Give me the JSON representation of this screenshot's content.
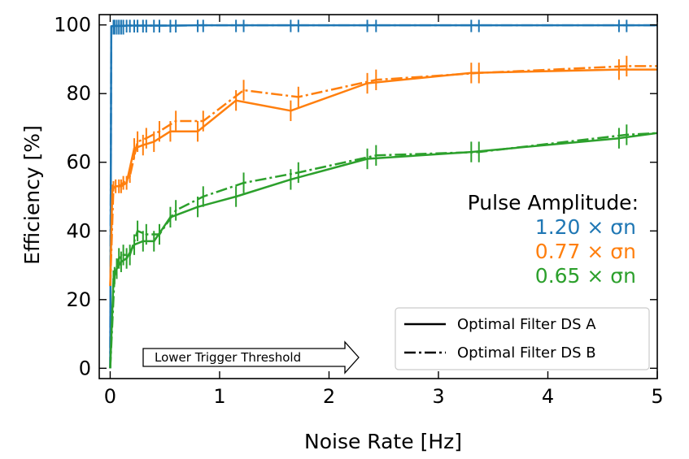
{
  "chart_data": {
    "type": "line",
    "xlabel": "Noise Rate [Hz]",
    "ylabel": "Efficiency [%]",
    "xlim": [
      -0.1,
      5.0
    ],
    "ylim": [
      -3,
      103
    ],
    "xticks": [
      "0",
      "1",
      "2",
      "3",
      "4",
      "5"
    ],
    "yticks": [
      "0",
      "20",
      "40",
      "60",
      "80",
      "100"
    ],
    "xtick_values": [
      0,
      1,
      2,
      3,
      4,
      5
    ],
    "ytick_values": [
      0,
      20,
      40,
      60,
      80,
      100
    ],
    "grid": false,
    "legend_position": "lower-right",
    "legend": [
      {
        "label": "Optimal Filter DS A",
        "style": "solid"
      },
      {
        "label": "Optimal Filter DS B",
        "style": "dashdot"
      }
    ],
    "annotation": {
      "title": "Pulse Amplitude:",
      "entries": [
        {
          "text": "1.20 × σn",
          "color": "#1f77b4"
        },
        {
          "text": "0.77 × σn",
          "color": "#ff7f0e"
        },
        {
          "text": "0.65 × σn",
          "color": "#2ca02c"
        }
      ]
    },
    "arrow_label": "Lower Trigger Threshold",
    "series": [
      {
        "amplitude": "1.20 × σn",
        "dataset": "Optimal Filter DS A",
        "color": "#1f77b4",
        "style": "solid",
        "x": [
          0.0,
          0.01,
          0.03,
          0.06,
          0.1,
          0.15,
          0.22,
          0.3,
          0.4,
          0.55,
          0.8,
          1.15,
          1.65,
          2.35,
          3.3,
          4.65,
          5.0
        ],
        "y": [
          0,
          99.6,
          99.7,
          99.7,
          99.7,
          99.8,
          99.8,
          99.8,
          99.8,
          99.8,
          99.9,
          99.9,
          99.9,
          99.9,
          99.9,
          99.9,
          99.9
        ],
        "yerr": [
          0,
          0,
          2.5,
          2.5,
          2.5,
          2.0,
          2.0,
          2.0,
          2.0,
          2.0,
          2.0,
          2.0,
          2.0,
          2.0,
          2.0,
          2.0,
          0
        ]
      },
      {
        "amplitude": "1.20 × σn",
        "dataset": "Optimal Filter DS B",
        "color": "#1f77b4",
        "style": "dashdot",
        "x": [
          0.0,
          0.01,
          0.04,
          0.08,
          0.12,
          0.18,
          0.25,
          0.33,
          0.45,
          0.6,
          0.85,
          1.22,
          1.72,
          2.43,
          3.37,
          4.72,
          5.0
        ],
        "y": [
          0,
          99.6,
          99.7,
          99.7,
          99.7,
          99.8,
          99.8,
          99.8,
          99.8,
          99.8,
          99.9,
          99.9,
          99.9,
          99.9,
          99.9,
          99.9,
          99.9
        ],
        "yerr": [
          0,
          0,
          2.5,
          2.5,
          2.5,
          2.0,
          2.0,
          2.0,
          2.0,
          2.0,
          2.0,
          2.0,
          2.0,
          2.0,
          2.0,
          2.0,
          0
        ]
      },
      {
        "amplitude": "0.77 × σn",
        "dataset": "Optimal Filter DS A",
        "color": "#ff7f0e",
        "style": "solid",
        "x": [
          0.0,
          0.02,
          0.05,
          0.1,
          0.15,
          0.22,
          0.3,
          0.4,
          0.55,
          0.8,
          1.15,
          1.65,
          2.35,
          3.3,
          4.65,
          5.0
        ],
        "y": [
          24,
          52,
          53,
          53,
          54,
          64,
          65,
          66,
          69,
          69,
          78,
          75,
          83,
          86,
          87,
          87
        ],
        "yerr": [
          0,
          1.5,
          2,
          2,
          2,
          3,
          3,
          3,
          3,
          3,
          3,
          3,
          3,
          3,
          3,
          0
        ]
      },
      {
        "amplitude": "0.77 × σn",
        "dataset": "Optimal Filter DS B",
        "color": "#ff7f0e",
        "style": "dashdot",
        "x": [
          0.0,
          0.03,
          0.08,
          0.12,
          0.18,
          0.25,
          0.33,
          0.45,
          0.6,
          0.85,
          1.22,
          1.72,
          2.43,
          3.37,
          4.72,
          5.0
        ],
        "y": [
          24,
          53,
          53,
          54,
          56,
          66,
          67,
          69,
          72,
          72,
          81,
          79,
          84,
          86,
          88,
          88
        ],
        "yerr": [
          0,
          1.5,
          2,
          2,
          2,
          3,
          3,
          3,
          3,
          3,
          3,
          3,
          3,
          3,
          3,
          0
        ]
      },
      {
        "amplitude": "0.65 × σn",
        "dataset": "Optimal Filter DS A",
        "color": "#2ca02c",
        "style": "solid",
        "x": [
          0.0,
          0.03,
          0.06,
          0.1,
          0.15,
          0.22,
          0.3,
          0.4,
          0.55,
          0.8,
          1.15,
          1.65,
          2.35,
          3.3,
          4.65,
          5.0
        ],
        "y": [
          0,
          26,
          29,
          31,
          32,
          36,
          37,
          37,
          44,
          47,
          50,
          55,
          61,
          63,
          67,
          68.5
        ],
        "yerr": [
          0,
          2.5,
          3,
          3,
          3,
          3,
          3,
          3,
          3,
          3,
          3,
          3,
          3,
          3,
          3,
          0
        ]
      },
      {
        "amplitude": "0.65 × σn",
        "dataset": "Optimal Filter DS B",
        "color": "#2ca02c",
        "style": "dashdot",
        "x": [
          0.0,
          0.04,
          0.08,
          0.12,
          0.18,
          0.25,
          0.33,
          0.45,
          0.6,
          0.85,
          1.22,
          1.72,
          2.43,
          3.37,
          4.72,
          5.0
        ],
        "y": [
          0,
          27,
          32,
          33,
          33,
          40,
          39,
          39,
          46,
          50,
          54,
          57,
          62,
          63,
          68,
          68.5
        ],
        "yerr": [
          0,
          2.5,
          3,
          3,
          3,
          3,
          3,
          3,
          3,
          3,
          3,
          3,
          3,
          3,
          3,
          0
        ]
      }
    ]
  }
}
